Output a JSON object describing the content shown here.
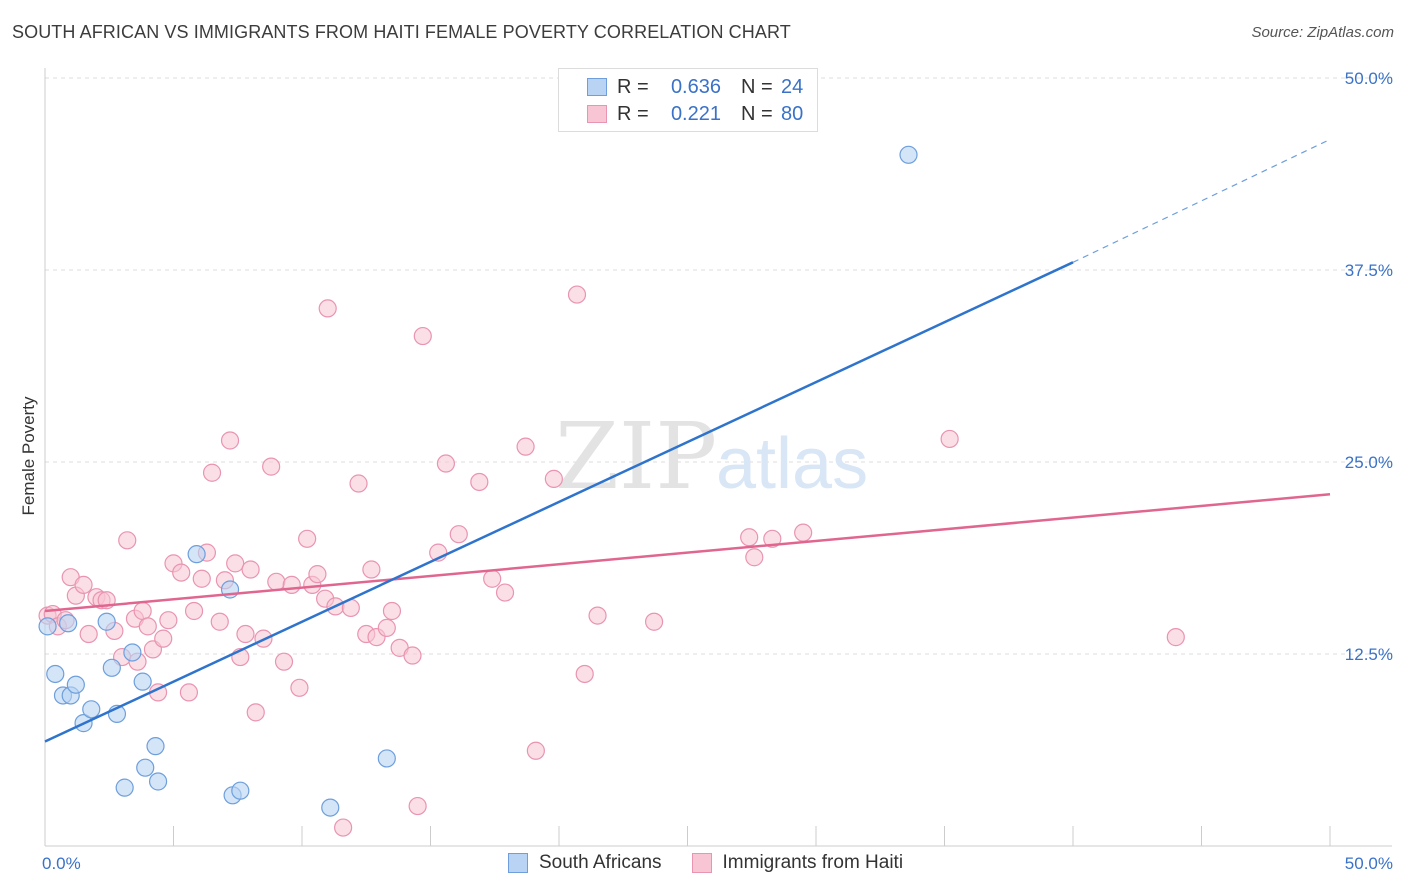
{
  "header": {
    "title": "SOUTH AFRICAN VS IMMIGRANTS FROM HAITI FEMALE POVERTY CORRELATION CHART",
    "source": "Source: ZipAtlas.com"
  },
  "watermark": {
    "zip": "ZIP",
    "atlas": "atlas"
  },
  "legend": {
    "rows": [
      {
        "r_label": "R =",
        "r_value": "0.636",
        "n_label": "N =",
        "n_value": "24"
      },
      {
        "r_label": "R =",
        "r_value": "0.221",
        "n_label": "N =",
        "n_value": "80"
      }
    ]
  },
  "bottom_legend": {
    "series_a": "South Africans",
    "series_b": "Immigrants from Haiti"
  },
  "colors": {
    "series_a_fill": "#b8d3f3",
    "series_a_stroke": "#6e9fdc",
    "series_a_line": "#2f74cc",
    "series_b_fill": "#f8c5d4",
    "series_b_stroke": "#e994b0",
    "series_b_line": "#e06690",
    "grid": "#dddddd",
    "tick_text": "#3a72c8"
  },
  "chart_data": {
    "type": "scatter",
    "title": "SOUTH AFRICAN VS IMMIGRANTS FROM HAITI FEMALE POVERTY CORRELATION CHART",
    "xlabel": "",
    "ylabel": "Female Poverty",
    "xlim": [
      0,
      50
    ],
    "ylim": [
      0,
      50
    ],
    "x_tick_labels": [
      "0.0%",
      "50.0%"
    ],
    "y_ticks": [
      12.5,
      25,
      37.5,
      50
    ],
    "y_tick_labels": [
      "12.5%",
      "25.0%",
      "37.5%",
      "50.0%"
    ],
    "grid": true,
    "legend_position": "top-center",
    "series": [
      {
        "name": "South Africans",
        "r": 0.636,
        "n": 24,
        "trend": {
          "x": [
            0,
            40
          ],
          "y": [
            6.8,
            38.0
          ],
          "dashed_to": [
            50,
            46.0
          ]
        },
        "points": [
          [
            0.1,
            14.3
          ],
          [
            0.4,
            11.2
          ],
          [
            0.7,
            9.8
          ],
          [
            0.9,
            14.5
          ],
          [
            1.0,
            9.8
          ],
          [
            1.2,
            10.5
          ],
          [
            1.5,
            8.0
          ],
          [
            1.8,
            8.9
          ],
          [
            2.4,
            14.6
          ],
          [
            2.6,
            11.6
          ],
          [
            2.8,
            8.6
          ],
          [
            3.1,
            3.8
          ],
          [
            3.4,
            12.6
          ],
          [
            3.8,
            10.7
          ],
          [
            3.9,
            5.1
          ],
          [
            4.3,
            6.5
          ],
          [
            4.4,
            4.2
          ],
          [
            5.9,
            19.0
          ],
          [
            7.2,
            16.7
          ],
          [
            7.3,
            3.3
          ],
          [
            7.6,
            3.6
          ],
          [
            11.1,
            2.5
          ],
          [
            13.3,
            5.7
          ],
          [
            33.6,
            45.0
          ]
        ]
      },
      {
        "name": "Immigrants from Haiti",
        "r": 0.221,
        "n": 80,
        "trend": {
          "x": [
            0,
            50
          ],
          "y": [
            15.3,
            22.9
          ]
        },
        "points": [
          [
            0.1,
            15.0
          ],
          [
            0.3,
            15.1
          ],
          [
            0.5,
            14.3
          ],
          [
            0.8,
            14.7
          ],
          [
            1.0,
            17.5
          ],
          [
            1.2,
            16.3
          ],
          [
            1.5,
            17.0
          ],
          [
            1.7,
            13.8
          ],
          [
            2.0,
            16.2
          ],
          [
            2.2,
            16.0
          ],
          [
            2.4,
            16.0
          ],
          [
            2.7,
            14.0
          ],
          [
            3.0,
            12.3
          ],
          [
            3.2,
            19.9
          ],
          [
            3.5,
            14.8
          ],
          [
            3.6,
            12.0
          ],
          [
            3.8,
            15.3
          ],
          [
            4.0,
            14.3
          ],
          [
            4.2,
            12.8
          ],
          [
            4.4,
            10.0
          ],
          [
            4.6,
            13.5
          ],
          [
            4.8,
            14.7
          ],
          [
            5.0,
            18.4
          ],
          [
            5.3,
            17.8
          ],
          [
            5.6,
            10.0
          ],
          [
            5.8,
            15.3
          ],
          [
            6.1,
            17.4
          ],
          [
            6.3,
            19.1
          ],
          [
            6.5,
            24.3
          ],
          [
            6.8,
            14.6
          ],
          [
            7.0,
            17.3
          ],
          [
            7.2,
            26.4
          ],
          [
            7.4,
            18.4
          ],
          [
            7.6,
            12.3
          ],
          [
            7.8,
            13.8
          ],
          [
            8.0,
            18.0
          ],
          [
            8.2,
            8.7
          ],
          [
            8.5,
            13.5
          ],
          [
            8.8,
            24.7
          ],
          [
            9.0,
            17.2
          ],
          [
            9.3,
            12.0
          ],
          [
            9.6,
            17.0
          ],
          [
            9.9,
            10.3
          ],
          [
            10.2,
            20.0
          ],
          [
            10.4,
            17.0
          ],
          [
            10.6,
            17.7
          ],
          [
            10.9,
            16.1
          ],
          [
            11.0,
            35.0
          ],
          [
            11.3,
            15.6
          ],
          [
            11.6,
            1.2
          ],
          [
            11.9,
            15.5
          ],
          [
            12.2,
            23.6
          ],
          [
            12.5,
            13.8
          ],
          [
            12.7,
            18.0
          ],
          [
            12.9,
            13.6
          ],
          [
            13.3,
            14.2
          ],
          [
            13.5,
            15.3
          ],
          [
            13.8,
            12.9
          ],
          [
            14.3,
            12.4
          ],
          [
            14.5,
            2.6
          ],
          [
            14.7,
            33.2
          ],
          [
            15.3,
            19.1
          ],
          [
            15.6,
            24.9
          ],
          [
            16.1,
            20.3
          ],
          [
            16.9,
            23.7
          ],
          [
            17.4,
            17.4
          ],
          [
            17.9,
            16.5
          ],
          [
            18.7,
            26.0
          ],
          [
            19.1,
            6.2
          ],
          [
            19.8,
            23.9
          ],
          [
            20.7,
            35.9
          ],
          [
            21.0,
            11.2
          ],
          [
            21.5,
            15.0
          ],
          [
            23.7,
            14.6
          ],
          [
            27.4,
            20.1
          ],
          [
            27.6,
            18.8
          ],
          [
            28.3,
            20.0
          ],
          [
            29.5,
            20.4
          ],
          [
            35.2,
            26.5
          ],
          [
            44.0,
            13.6
          ]
        ]
      }
    ]
  }
}
